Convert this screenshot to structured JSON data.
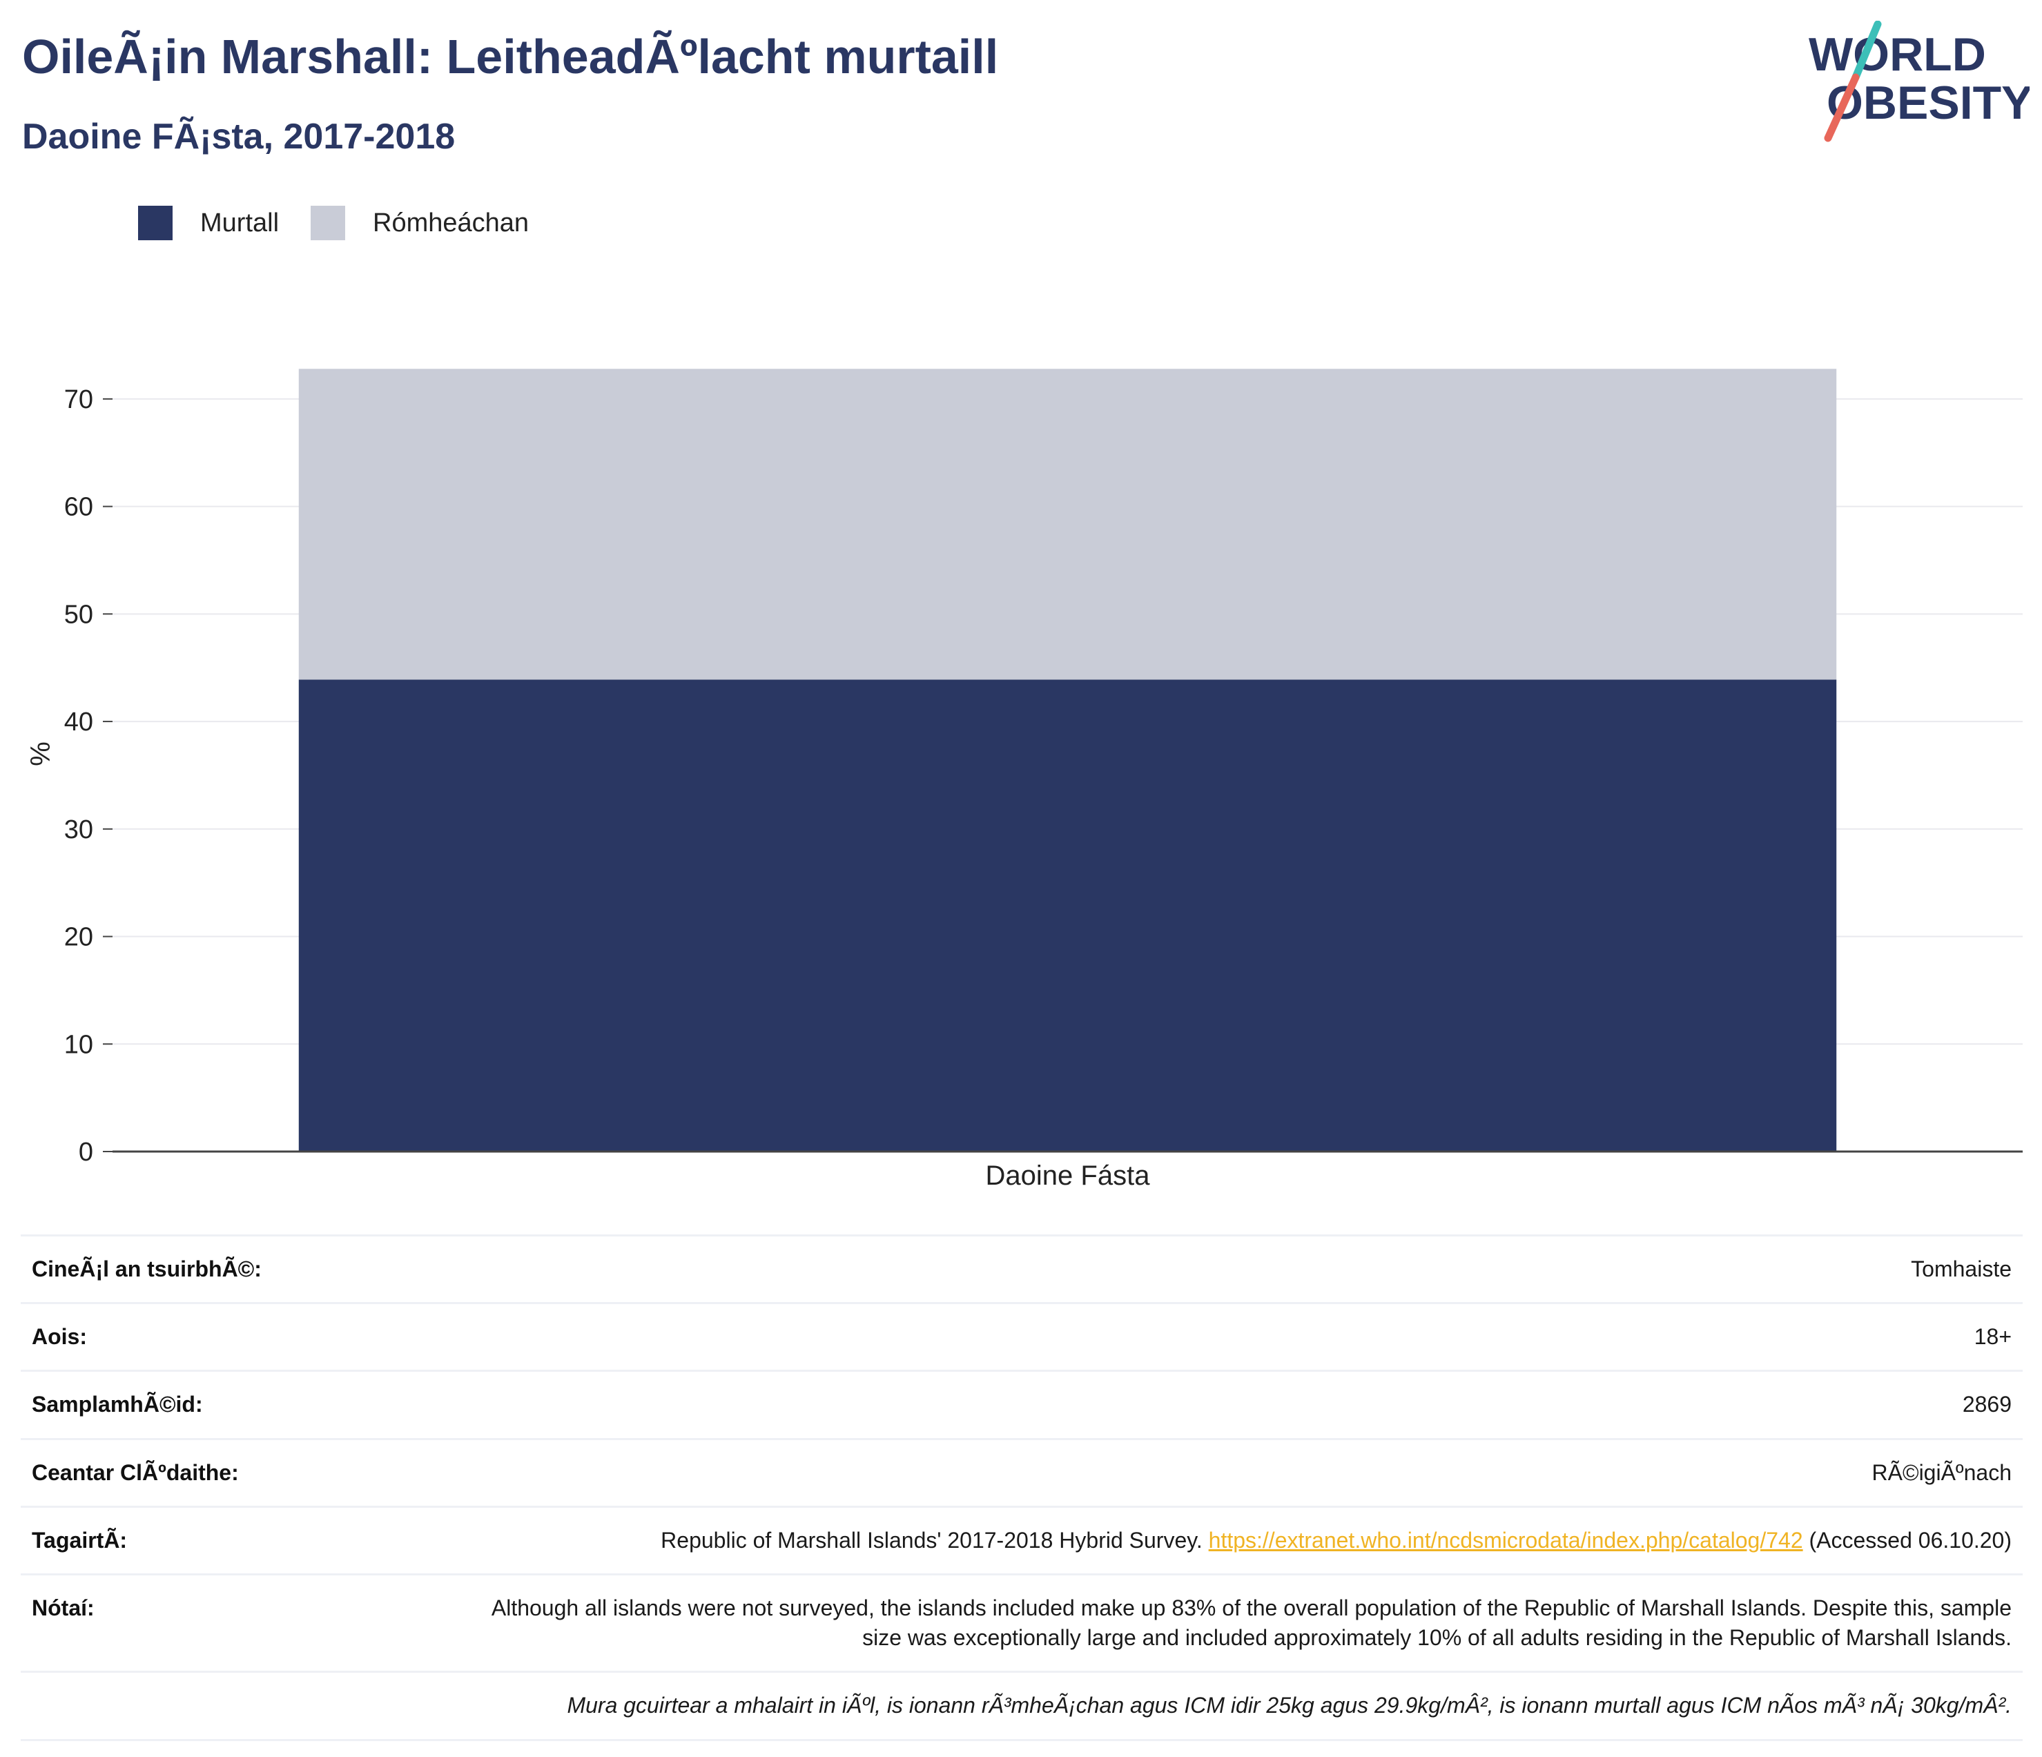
{
  "header": {
    "title": "OileÃ¡in Marshall: LeitheadÃºlacht murtaill",
    "subtitle": "Daoine FÃ¡sta, 2017-2018"
  },
  "logo": {
    "line1": "WORLD",
    "line2": "OBESITY",
    "icon": "world-obesity-logo"
  },
  "colors": {
    "murtall": "#2a3763",
    "romheachan": "#c9ccd7",
    "title": "#2a3763",
    "link": "#f0b323"
  },
  "chart_data": {
    "type": "bar",
    "stacked": true,
    "categories": [
      "Daoine Fásta"
    ],
    "series": [
      {
        "name": "Murtall",
        "values": [
          43.9
        ]
      },
      {
        "name": "Rómheáchan",
        "values": [
          28.9
        ]
      }
    ],
    "title": "OileÃ¡in Marshall: LeitheadÃºlacht murtaill",
    "subtitle": "Daoine FÃ¡sta, 2017-2018",
    "xlabel": "",
    "ylabel": "%",
    "ylim": [
      0,
      75
    ],
    "yticks": [
      0,
      10,
      20,
      30,
      40,
      50,
      60,
      70
    ],
    "grid": true,
    "legend": "top-left"
  },
  "info": {
    "rows": [
      {
        "key": "CineÃ¡l an tsuirbhÃ©:",
        "value": "Tomhaiste"
      },
      {
        "key": "Aois:",
        "value": "18+"
      },
      {
        "key": "SamplamhÃ©id:",
        "value": "2869"
      },
      {
        "key": "Ceantar ClÃºdaithe:",
        "value": "RÃ©igiÃºnach"
      }
    ],
    "reference": {
      "key": "TagairtÃ­:",
      "text": "Republic of Marshall Islands' 2017-2018 Hybrid Survey.",
      "url": "https://extranet.who.int/ncdsmicrodata/index.php/catalog/742",
      "accessed": "(Accessed 06.10.20)"
    },
    "notes": {
      "key": "Nótaí:",
      "value": "Although all islands were not surveyed, the islands included make up 83% of the overall population of the Republic of Marshall Islands. Despite this, sample size was exceptionally large and included approximately 10% of all adults residing in the Republic of Marshall Islands."
    },
    "footnote": "Mura gcuirtear a mhalairt in iÃºl, is ionann rÃ³mheÃ¡chan agus ICM idir 25kg agus 29.9kg/mÂ², is ionann murtall agus ICM nÃ­os mÃ³ nÃ¡ 30kg/mÂ²."
  }
}
